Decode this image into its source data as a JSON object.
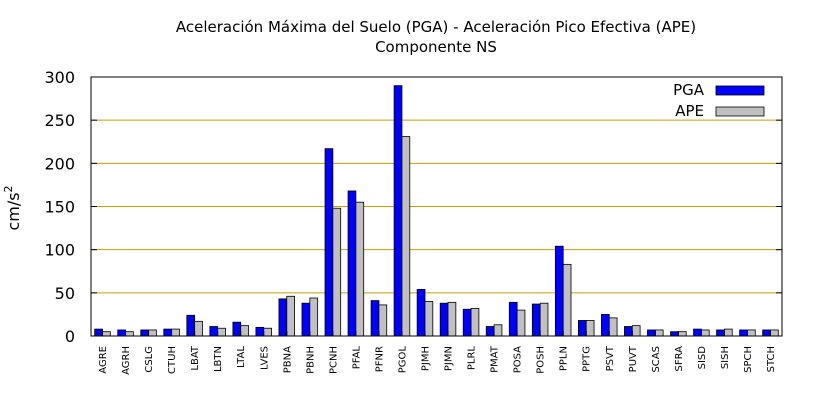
{
  "chart_data": {
    "type": "bar",
    "title": "Aceleración Máxima del Suelo (PGA) -  Aceleración Pico Efectiva (APE)",
    "subtitle": "Componente NS",
    "xlabel": "",
    "ylabel": "cm/s",
    "ylabel_sup": "2",
    "ylim": [
      0,
      300
    ],
    "yticks": [
      0,
      50,
      100,
      150,
      200,
      250,
      300
    ],
    "grid": true,
    "legend_position": "top-right",
    "categories": [
      "AGRE",
      "AGRH",
      "CSLG",
      "CTUH",
      "LBAT",
      "LBTN",
      "LTAL",
      "LVES",
      "PBNA",
      "PBNH",
      "PCNH",
      "PFAL",
      "PFNR",
      "PGOL",
      "PJMH",
      "PJMN",
      "PLRL",
      "PMAT",
      "POSA",
      "POSH",
      "PPLN",
      "PPTG",
      "PSVT",
      "PUVT",
      "SCAS",
      "SFRA",
      "SISD",
      "SISH",
      "SPCH",
      "STCH"
    ],
    "series": [
      {
        "name": "PGA",
        "color": "#0000ff",
        "values": [
          8,
          7,
          7,
          8,
          24,
          11,
          16,
          10,
          43,
          38,
          217,
          168,
          41,
          290,
          54,
          38,
          31,
          11,
          39,
          37,
          104,
          18,
          25,
          11,
          7,
          5,
          8,
          7,
          7,
          7
        ]
      },
      {
        "name": "APE",
        "color": "#c0c0c0",
        "values": [
          5,
          5,
          7,
          8,
          17,
          9,
          12,
          9,
          46,
          44,
          148,
          155,
          36,
          231,
          40,
          39,
          32,
          13,
          30,
          38,
          83,
          18,
          21,
          12,
          7,
          5,
          7,
          8,
          7,
          7
        ]
      }
    ],
    "colors": {
      "gridline": "#c8a000",
      "axis": "#000000"
    }
  }
}
